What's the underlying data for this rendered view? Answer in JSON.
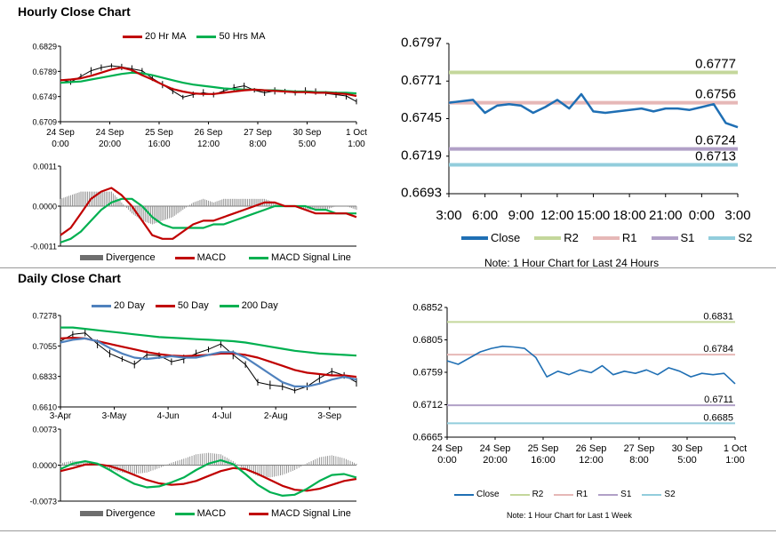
{
  "colors": {
    "ma_short": "#c00000",
    "ma_long": "#00b050",
    "ma_blue": "#4f81bd",
    "signal_green": "#00b050",
    "close": "#1f6fb4",
    "r2": "#c4d79b",
    "r1": "#e6b8b7",
    "s1": "#b1a0c7",
    "s2": "#92cddc",
    "divergence": "#7f7f7f",
    "price": "#000000"
  },
  "hourly": {
    "title": "Hourly Close Chart",
    "price_chart": {
      "type": "line",
      "legend": [
        "20 Hr MA",
        "50 Hrs MA"
      ],
      "y_ticks": [
        "0.6829",
        "0.6789",
        "0.6749",
        "0.6709"
      ],
      "ylim": [
        0.6709,
        0.6829
      ],
      "x_ticks": [
        [
          "24 Sep",
          "0:00"
        ],
        [
          "24 Sep",
          "20:00"
        ],
        [
          "25 Sep",
          "16:00"
        ],
        [
          "26 Sep",
          "12:00"
        ],
        [
          "27 Sep",
          "8:00"
        ],
        [
          "30 Sep",
          "5:00"
        ],
        [
          "1 Oct",
          "1:00"
        ]
      ],
      "price": [
        0.6776,
        0.6772,
        0.6781,
        0.679,
        0.6795,
        0.6798,
        0.6796,
        0.6793,
        0.679,
        0.6778,
        0.6768,
        0.6758,
        0.6748,
        0.6752,
        0.6755,
        0.6752,
        0.6758,
        0.6763,
        0.6766,
        0.6759,
        0.6755,
        0.6758,
        0.6757,
        0.6755,
        0.6758,
        0.6757,
        0.6754,
        0.6752,
        0.675,
        0.6741
      ],
      "ma20": [
        0.6775,
        0.6776,
        0.6778,
        0.6782,
        0.6787,
        0.6792,
        0.6795,
        0.6791,
        0.6783,
        0.6776,
        0.6768,
        0.6761,
        0.6757,
        0.6754,
        0.6753,
        0.6753,
        0.6755,
        0.6757,
        0.6759,
        0.676,
        0.6759,
        0.6758,
        0.6757,
        0.6756,
        0.6756,
        0.6755,
        0.6755,
        0.6754,
        0.6753,
        0.675
      ],
      "ma50": [
        0.6771,
        0.6772,
        0.6773,
        0.6776,
        0.6779,
        0.6782,
        0.6785,
        0.6787,
        0.6786,
        0.6783,
        0.6779,
        0.6775,
        0.6771,
        0.6768,
        0.6766,
        0.6764,
        0.6762,
        0.6761,
        0.676,
        0.676,
        0.6759,
        0.6759,
        0.6758,
        0.6757,
        0.6757,
        0.6756,
        0.6756,
        0.6755,
        0.6755,
        0.6754
      ]
    },
    "macd_chart": {
      "type": "line",
      "legend": [
        "Divergence",
        "MACD",
        "MACD Signal Line"
      ],
      "y_ticks": [
        "0.0011",
        "0.0000",
        "-0.0011"
      ],
      "ylim": [
        -0.0011,
        0.0011
      ],
      "macd": [
        -0.0008,
        -0.0006,
        -0.0002,
        0.0002,
        0.0004,
        0.0005,
        0.0003,
        0.0,
        -0.0004,
        -0.0008,
        -0.0009,
        -0.0009,
        -0.0007,
        -0.0005,
        -0.0004,
        -0.0004,
        -0.0003,
        -0.0002,
        -0.0001,
        0.0,
        0.0001,
        0.0001,
        0.0,
        0.0,
        -0.0001,
        -0.0002,
        -0.0002,
        -0.0002,
        -0.0002,
        -0.0003
      ],
      "signal": [
        -0.001,
        -0.0009,
        -0.0007,
        -0.0004,
        -0.0001,
        0.0001,
        0.0002,
        0.0002,
        0.0,
        -0.0003,
        -0.0005,
        -0.0006,
        -0.0006,
        -0.0006,
        -0.0006,
        -0.0005,
        -0.0005,
        -0.0004,
        -0.0003,
        -0.0002,
        -0.0001,
        0.0,
        0.0,
        0.0,
        0.0,
        -0.0001,
        -0.0001,
        -0.0002,
        -0.0002,
        -0.0002
      ],
      "divergence": [
        0.0002,
        0.0003,
        0.0004,
        0.0004,
        0.0004,
        0.0004,
        0.0001,
        -0.0002,
        -0.0004,
        -0.0005,
        -0.0004,
        -0.0003,
        -0.0001,
        0.0001,
        0.0002,
        0.0001,
        0.0002,
        0.0002,
        0.0002,
        0.0002,
        0.0002,
        0.0001,
        0.0,
        0.0,
        -0.0001,
        -0.0001,
        -0.0001,
        0.0,
        0.0,
        -0.0001
      ]
    },
    "levels_chart": {
      "type": "line",
      "y_ticks": [
        "0.6797",
        "0.6771",
        "0.6745",
        "0.6719",
        "0.6693"
      ],
      "ylim": [
        0.6693,
        0.6797
      ],
      "x_ticks": [
        "3:00",
        "6:00",
        "9:00",
        "12:00",
        "15:00",
        "18:00",
        "21:00",
        "0:00",
        "3:00"
      ],
      "close": [
        0.6756,
        0.6757,
        0.6758,
        0.6749,
        0.6754,
        0.6755,
        0.6754,
        0.6749,
        0.6753,
        0.6758,
        0.6752,
        0.6762,
        0.675,
        0.6749,
        0.675,
        0.6751,
        0.6752,
        0.675,
        0.6752,
        0.6752,
        0.6751,
        0.6753,
        0.6755,
        0.6742,
        0.6739
      ],
      "levels": {
        "R2": 0.6777,
        "R1": 0.6756,
        "S1": 0.6724,
        "S2": 0.6713
      },
      "level_labels": {
        "R2": "0.6777",
        "R1": "0.6756",
        "S1": "0.6724",
        "S2": "0.6713"
      },
      "legend": [
        "Close",
        "R2",
        "R1",
        "S1",
        "S2"
      ],
      "note": "Note: 1 Hour Chart for Last 24 Hours"
    }
  },
  "daily": {
    "title": "Daily Close Chart",
    "price_chart": {
      "type": "line",
      "legend": [
        "20 Day",
        "50 Day",
        "200 Day"
      ],
      "y_ticks": [
        "0.7278",
        "0.7055",
        "0.6833",
        "0.6610"
      ],
      "ylim": [
        0.661,
        0.7278
      ],
      "x_ticks": [
        "3-Apr",
        "3-May",
        "4-Jun",
        "4-Jul",
        "2-Aug",
        "3-Sep"
      ],
      "price": [
        0.709,
        0.714,
        0.715,
        0.707,
        0.7,
        0.696,
        0.692,
        0.699,
        0.6985,
        0.694,
        0.696,
        0.7,
        0.703,
        0.707,
        0.699,
        0.692,
        0.679,
        0.677,
        0.676,
        0.673,
        0.676,
        0.682,
        0.687,
        0.684,
        0.679
      ],
      "ma20": [
        0.708,
        0.71,
        0.711,
        0.709,
        0.704,
        0.7,
        0.697,
        0.696,
        0.697,
        0.698,
        0.697,
        0.697,
        0.699,
        0.701,
        0.701,
        0.697,
        0.691,
        0.685,
        0.679,
        0.676,
        0.676,
        0.678,
        0.681,
        0.683,
        0.681
      ],
      "ma50": [
        0.711,
        0.7115,
        0.711,
        0.709,
        0.707,
        0.705,
        0.703,
        0.701,
        0.6995,
        0.6985,
        0.698,
        0.6985,
        0.699,
        0.7,
        0.7,
        0.699,
        0.697,
        0.694,
        0.691,
        0.688,
        0.686,
        0.685,
        0.684,
        0.684,
        0.683
      ],
      "ma200": [
        0.719,
        0.719,
        0.718,
        0.717,
        0.716,
        0.715,
        0.714,
        0.713,
        0.712,
        0.7115,
        0.711,
        0.7105,
        0.71,
        0.7095,
        0.709,
        0.708,
        0.7065,
        0.705,
        0.7035,
        0.702,
        0.701,
        0.7,
        0.6995,
        0.699,
        0.6985
      ]
    },
    "macd_chart": {
      "type": "line",
      "legend": [
        "Divergence",
        "MACD",
        "MACD Signal Line"
      ],
      "y_ticks": [
        "0.0073",
        "0.0000",
        "-0.0073"
      ],
      "ylim": [
        -0.0073,
        0.0073
      ],
      "macd": [
        -0.0008,
        0.0003,
        0.0008,
        0.0003,
        -0.001,
        -0.0025,
        -0.0038,
        -0.0045,
        -0.0043,
        -0.0035,
        -0.0025,
        -0.001,
        0.0003,
        0.001,
        0.0002,
        -0.0018,
        -0.004,
        -0.0055,
        -0.0062,
        -0.006,
        -0.0048,
        -0.0032,
        -0.002,
        -0.0018,
        -0.0025
      ],
      "signal": [
        -0.0012,
        -0.0006,
        0.0001,
        0.0002,
        -0.0002,
        -0.001,
        -0.002,
        -0.003,
        -0.0037,
        -0.004,
        -0.0038,
        -0.0032,
        -0.0022,
        -0.0012,
        -0.0006,
        -0.0008,
        -0.0018,
        -0.003,
        -0.0042,
        -0.005,
        -0.0052,
        -0.0048,
        -0.004,
        -0.0032,
        -0.0028
      ],
      "divergence": [
        0.0004,
        0.0009,
        0.0007,
        0.0001,
        -0.0008,
        -0.0015,
        -0.0018,
        -0.0015,
        -0.0006,
        0.0005,
        0.0013,
        0.0022,
        0.0025,
        0.0022,
        0.0008,
        -0.001,
        -0.0022,
        -0.0025,
        -0.002,
        -0.001,
        0.0004,
        0.0016,
        0.002,
        0.0014,
        0.0003
      ]
    },
    "levels_chart": {
      "type": "line",
      "y_ticks": [
        "0.6852",
        "0.6805",
        "0.6759",
        "0.6712",
        "0.6665"
      ],
      "ylim": [
        0.6665,
        0.6852
      ],
      "x_ticks": [
        [
          "24 Sep",
          "0:00"
        ],
        [
          "24 Sep",
          "20:00"
        ],
        [
          "25 Sep",
          "16:00"
        ],
        [
          "26 Sep",
          "12:00"
        ],
        [
          "27 Sep",
          "8:00"
        ],
        [
          "30 Sep",
          "5:00"
        ],
        [
          "1 Oct",
          "1:00"
        ]
      ],
      "close": [
        0.6775,
        0.677,
        0.6779,
        0.6788,
        0.6793,
        0.6796,
        0.6795,
        0.6793,
        0.678,
        0.6752,
        0.676,
        0.6755,
        0.6762,
        0.6758,
        0.6768,
        0.6755,
        0.676,
        0.6757,
        0.6762,
        0.6755,
        0.6765,
        0.676,
        0.6752,
        0.6757,
        0.6755,
        0.6757,
        0.6742
      ],
      "levels": {
        "R2": 0.6831,
        "R1": 0.6784,
        "S1": 0.6711,
        "S2": 0.6685
      },
      "level_labels": {
        "R2": "0.6831",
        "R1": "0.6784",
        "S1": "0.6711",
        "S2": "0.6685"
      },
      "legend": [
        "Close",
        "R2",
        "R1",
        "S1",
        "S2"
      ],
      "note": "Note: 1 Hour Chart for Last 1 Week"
    }
  }
}
